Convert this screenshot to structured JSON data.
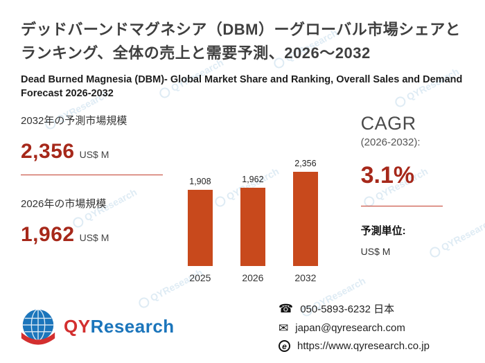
{
  "title_jp": "デッドバーンドマグネシア（DBM）ーグローバル市場シェアとランキング、全体の売上と需要予測、2026～2032",
  "title_en": "Dead Burned Magnesia (DBM)- Global Market Share and Ranking, Overall Sales and Demand Forecast 2026-2032",
  "stats": {
    "forecast_2032": {
      "label": "2032年の予測市場規模",
      "value": "2,356",
      "unit": "US$ M"
    },
    "base_2026": {
      "label": "2026年の市場規模",
      "value": "1,962",
      "unit": "US$ M"
    }
  },
  "cagr": {
    "title": "CAGR",
    "period": "(2026-2032):",
    "value": "3.1%"
  },
  "forecast_unit": {
    "label": "予測単位:",
    "value": "US$ M"
  },
  "chart_data": {
    "type": "bar",
    "categories": [
      "2025",
      "2026",
      "2032"
    ],
    "values": [
      1908,
      1962,
      2356
    ],
    "value_labels": [
      "1,908",
      "1,962",
      "2,356"
    ],
    "title": "",
    "xlabel": "",
    "ylabel": "",
    "ylim": [
      0,
      2600
    ],
    "bar_color": "#c8491c",
    "grid": false,
    "legend": "none"
  },
  "logo": {
    "qy": "QY",
    "research": "Research"
  },
  "contact": {
    "phone": "050-5893-6232 日本",
    "email": "japan@qyresearch.com",
    "website": "https://www.qyresearch.co.jp"
  },
  "watermark": "QYResearch",
  "colors": {
    "accent_red": "#a6281a",
    "bar_orange": "#c8491c",
    "logo_blue": "#1b75bb",
    "logo_red": "#d32f2f"
  }
}
